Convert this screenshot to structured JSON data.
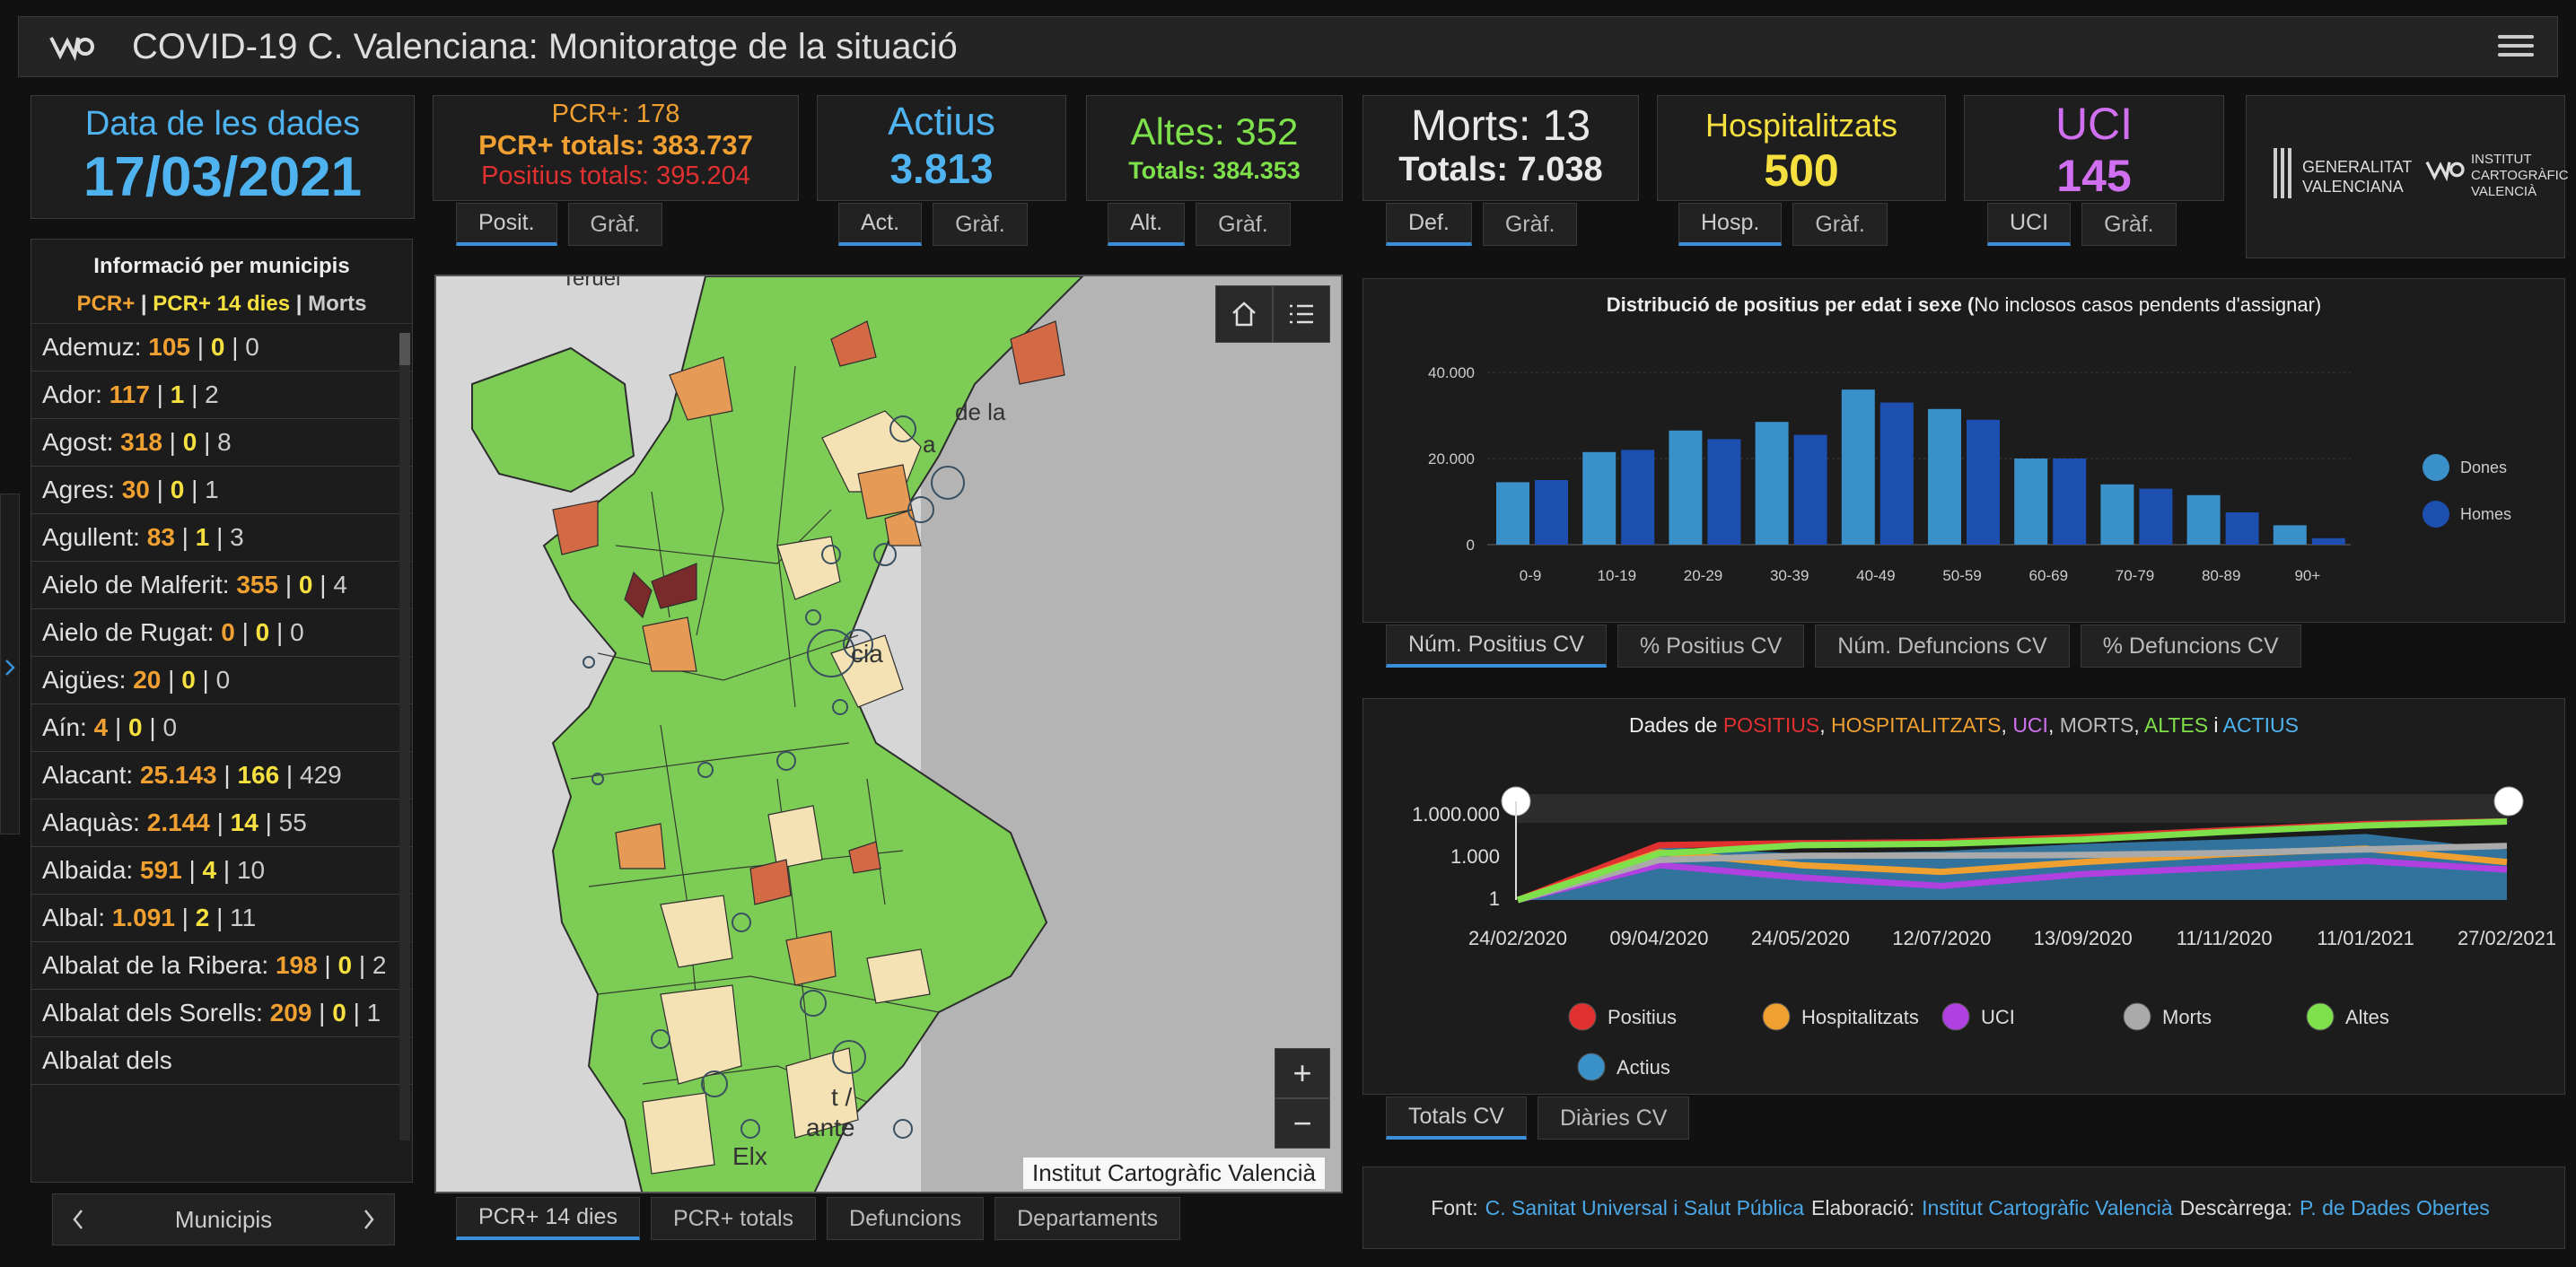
{
  "header": {
    "title": "COVID-19 C. Valenciana: Monitoratge de la situació"
  },
  "date_box": {
    "label": "Data de les dades",
    "value": "17/03/2021"
  },
  "pcr_box": {
    "line1": "PCR+: 178",
    "line2": "PCR+ totals: 383.737",
    "line3": "Positius totals: 395.204",
    "tabs": [
      "Posit.",
      "Gràf."
    ]
  },
  "actius_box": {
    "label": "Actius",
    "value": "3.813",
    "tabs": [
      "Act.",
      "Gràf."
    ]
  },
  "altes_box": {
    "label": "Altes: 352",
    "value": "Totals: 384.353",
    "tabs": [
      "Alt.",
      "Gràf."
    ]
  },
  "morts_box": {
    "label": "Morts: 13",
    "value": "Totals: 7.038",
    "tabs": [
      "Def.",
      "Gràf."
    ]
  },
  "hosp_box": {
    "label": "Hospitalitzats",
    "value": "500",
    "tabs": [
      "Hosp.",
      "Gràf."
    ]
  },
  "uci_box": {
    "label": "UCI",
    "value": "145",
    "tabs": [
      "UCI",
      "Gràf."
    ]
  },
  "logos": {
    "gva_l1": "GENERALITAT",
    "gva_l2": "VALENCIANA",
    "icv_l1": "INSTITUT",
    "icv_l2": "CARTOGRÀFIC",
    "icv_l3": "VALENCIÀ"
  },
  "municipis": {
    "title": "Informació per municipis",
    "legend": {
      "a": "PCR+",
      "b": "PCR+ 14 dies",
      "c": "Morts"
    },
    "rows": [
      {
        "name": "Ademuz:",
        "a": "105",
        "b": "0",
        "c": "0"
      },
      {
        "name": "Ador:",
        "a": "117",
        "b": "1",
        "c": "2"
      },
      {
        "name": "Agost:",
        "a": "318",
        "b": "0",
        "c": "8"
      },
      {
        "name": "Agres:",
        "a": "30",
        "b": "0",
        "c": "1"
      },
      {
        "name": "Agullent:",
        "a": "83",
        "b": "1",
        "c": "3"
      },
      {
        "name": "Aielo de Malferit:",
        "a": "355",
        "b": "0",
        "c": "4"
      },
      {
        "name": "Aielo de Rugat:",
        "a": "0",
        "b": "0",
        "c": "0"
      },
      {
        "name": "Aigües:",
        "a": "20",
        "b": "0",
        "c": "0"
      },
      {
        "name": "Aín:",
        "a": "4",
        "b": "0",
        "c": "0"
      },
      {
        "name": "Alacant:",
        "a": "25.143",
        "b": "166",
        "c": "429"
      },
      {
        "name": "Alaquàs:",
        "a": "2.144",
        "b": "14",
        "c": "55"
      },
      {
        "name": "Albaida:",
        "a": "591",
        "b": "4",
        "c": "10"
      },
      {
        "name": "Albal:",
        "a": "1.091",
        "b": "2",
        "c": "11"
      },
      {
        "name": "Albalat de la Ribera:",
        "a": "198",
        "b": "0",
        "c": "2"
      },
      {
        "name": "Albalat dels Sorells:",
        "a": "209",
        "b": "0",
        "c": "1"
      },
      {
        "name": "Albalat dels",
        "a": "",
        "b": "",
        "c": ""
      }
    ],
    "nav_label": "Municipis"
  },
  "map": {
    "attribution": "Institut Cartogràfic Valencià",
    "labels": {
      "teruel": "Teruel",
      "sagunt": "de la",
      "sagunt2": "a",
      "valencia": "cia",
      "alacant1": "t /",
      "alacant2": "ante",
      "elx": "Elx"
    },
    "tabs": [
      "PCR+ 14 dies",
      "PCR+ totals",
      "Defuncions",
      "Departaments"
    ]
  },
  "bar_chart": {
    "title_bold": "Distribució de positius per edat i sexe (",
    "title_rest": "No inclosos casos pendents d'assignar)",
    "tabs": [
      "Núm. Positius CV",
      "% Positius CV",
      "Núm. Defuncions CV",
      "% Defuncions CV"
    ]
  },
  "line_chart": {
    "title_prefix": "Dades de",
    "title_parts": [
      "POSITIUS",
      "HOSPITALITZATS",
      "UCI",
      "MORTS",
      "ALTES",
      "ACTIUS"
    ],
    "sep": ",",
    "and": "i",
    "tabs": [
      "Totals CV",
      "Diàries CV"
    ]
  },
  "footer": {
    "font_label": "Font:",
    "font_link": "C. Sanitat Universal i Salut Pública",
    "elab_label": "Elaboració:",
    "elab_link": "Institut Cartogràfic Valencià",
    "desc_label": "Descàrrega:",
    "desc_link": "P. de Dades Obertes"
  },
  "colors": {
    "date": "#4fb3f0",
    "pcr": "#f0a030",
    "pos": "#e03030",
    "actius": "#4fb3f0",
    "altes": "#7ee04a",
    "hosp": "#f5e040",
    "uci": "#d070f0",
    "morts": "#cccccc",
    "dones": "#3a90c8",
    "homes": "#1c4fb0"
  },
  "chart_data": [
    {
      "type": "bar",
      "title": "Distribució de positius per edat i sexe (No inclosos casos pendents d'assignar)",
      "categories": [
        "0-9",
        "10-19",
        "20-29",
        "30-39",
        "40-49",
        "50-59",
        "60-69",
        "70-79",
        "80-89",
        "90+"
      ],
      "series": [
        {
          "name": "Dones",
          "values": [
            14500,
            21500,
            26500,
            28500,
            36000,
            31500,
            20000,
            14000,
            11500,
            4500
          ]
        },
        {
          "name": "Homes",
          "values": [
            15000,
            22000,
            24500,
            25500,
            33000,
            29000,
            20000,
            13000,
            7500,
            1500
          ]
        }
      ],
      "yticks": [
        "0",
        "20.000",
        "40.000"
      ],
      "ylim": [
        0,
        40000
      ],
      "legend": "right",
      "grid": true
    },
    {
      "type": "line",
      "title": "Dades de POSITIUS, HOSPITALITZATS, UCI, MORTS, ALTES i ACTIUS",
      "yscale": "log",
      "yticks": [
        "1",
        "1.000",
        "1.000.000"
      ],
      "xticks": [
        "24/02/2020",
        "09/04/2020",
        "24/05/2020",
        "12/07/2020",
        "13/09/2020",
        "11/11/2020",
        "11/01/2021",
        "27/02/2021"
      ],
      "series": [
        {
          "name": "Positius",
          "color": "#e03030",
          "values": [
            1,
            8000,
            11000,
            13000,
            30000,
            90000,
            250000,
            395000
          ]
        },
        {
          "name": "Hospitalitzats",
          "color": "#f0a030",
          "values": [
            1,
            2500,
            300,
            100,
            500,
            1800,
            4500,
            500
          ]
        },
        {
          "name": "UCI",
          "color": "#b040e0",
          "values": [
            1,
            300,
            40,
            10,
            70,
            200,
            600,
            145
          ]
        },
        {
          "name": "Morts",
          "color": "#aaaaaa",
          "values": [
            1,
            700,
            1400,
            1450,
            1600,
            2200,
            4000,
            7038
          ]
        },
        {
          "name": "Altes",
          "color": "#7ee04a",
          "values": [
            1,
            2000,
            8000,
            10000,
            20000,
            70000,
            200000,
            384000
          ]
        },
        {
          "name": "Actius",
          "color": "#3a90c8",
          "values": [
            1,
            6000,
            2000,
            3000,
            10000,
            20000,
            50000,
            3813
          ]
        }
      ],
      "legend": "bottom"
    }
  ]
}
